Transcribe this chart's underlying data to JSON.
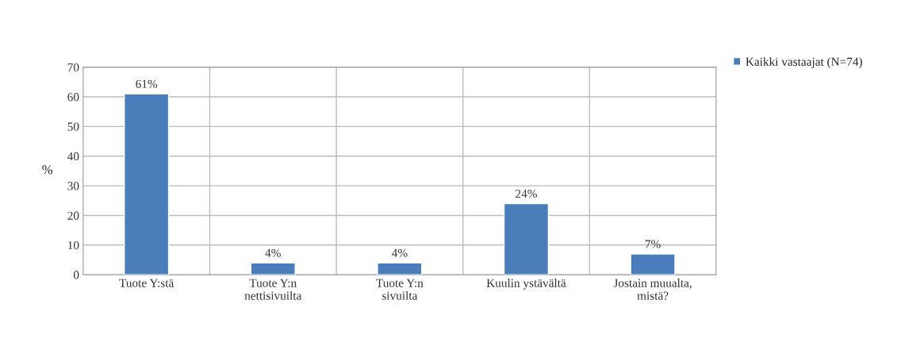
{
  "chart_data": {
    "type": "bar",
    "ylabel": "%",
    "categories": [
      "Tuote Y:stä",
      "Tuote Y:n\nnettisivuilta",
      "Tuote Y:n\nsivuilta",
      "Kuulin ystävältä",
      "Jostain muualta,\nmistä?"
    ],
    "series": [
      {
        "name": "Kaikki vastaajat (N=74)",
        "color": "#4a7ebb",
        "values": [
          61,
          4,
          4,
          24,
          7
        ],
        "value_labels": [
          "61%",
          "4%",
          "4%",
          "24%",
          "7%"
        ]
      }
    ],
    "ylim": [
      0,
      70
    ],
    "yticks": [
      0,
      10,
      20,
      30,
      40,
      50,
      60,
      70
    ],
    "grid": true,
    "legend": "top right"
  }
}
